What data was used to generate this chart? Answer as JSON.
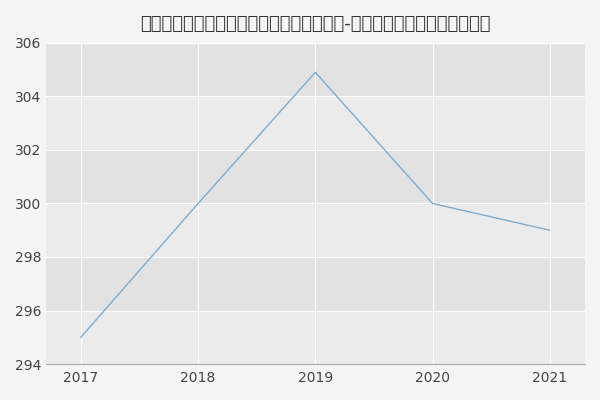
{
  "title": "南通大学医学院、药学院皮肤病与性病学（-历年复试）研究生录取分数线",
  "x": [
    2017,
    2018,
    2019,
    2020,
    2021
  ],
  "y": [
    295,
    300,
    304.9,
    300,
    299
  ],
  "line_color": "#7aadd4",
  "background_color": "#f5f5f5",
  "plot_bg_color_light": "#ebebeb",
  "plot_bg_color_dark": "#e2e2e2",
  "xlim_min": 2016.7,
  "xlim_max": 2021.3,
  "ylim_min": 294,
  "ylim_max": 306,
  "yticks": [
    294,
    296,
    298,
    300,
    302,
    304,
    306
  ],
  "xticks": [
    2017,
    2018,
    2019,
    2020,
    2021
  ],
  "title_fontsize": 13,
  "grid_color": "#ffffff",
  "grid_linewidth": 0.8,
  "line_width": 1.0
}
